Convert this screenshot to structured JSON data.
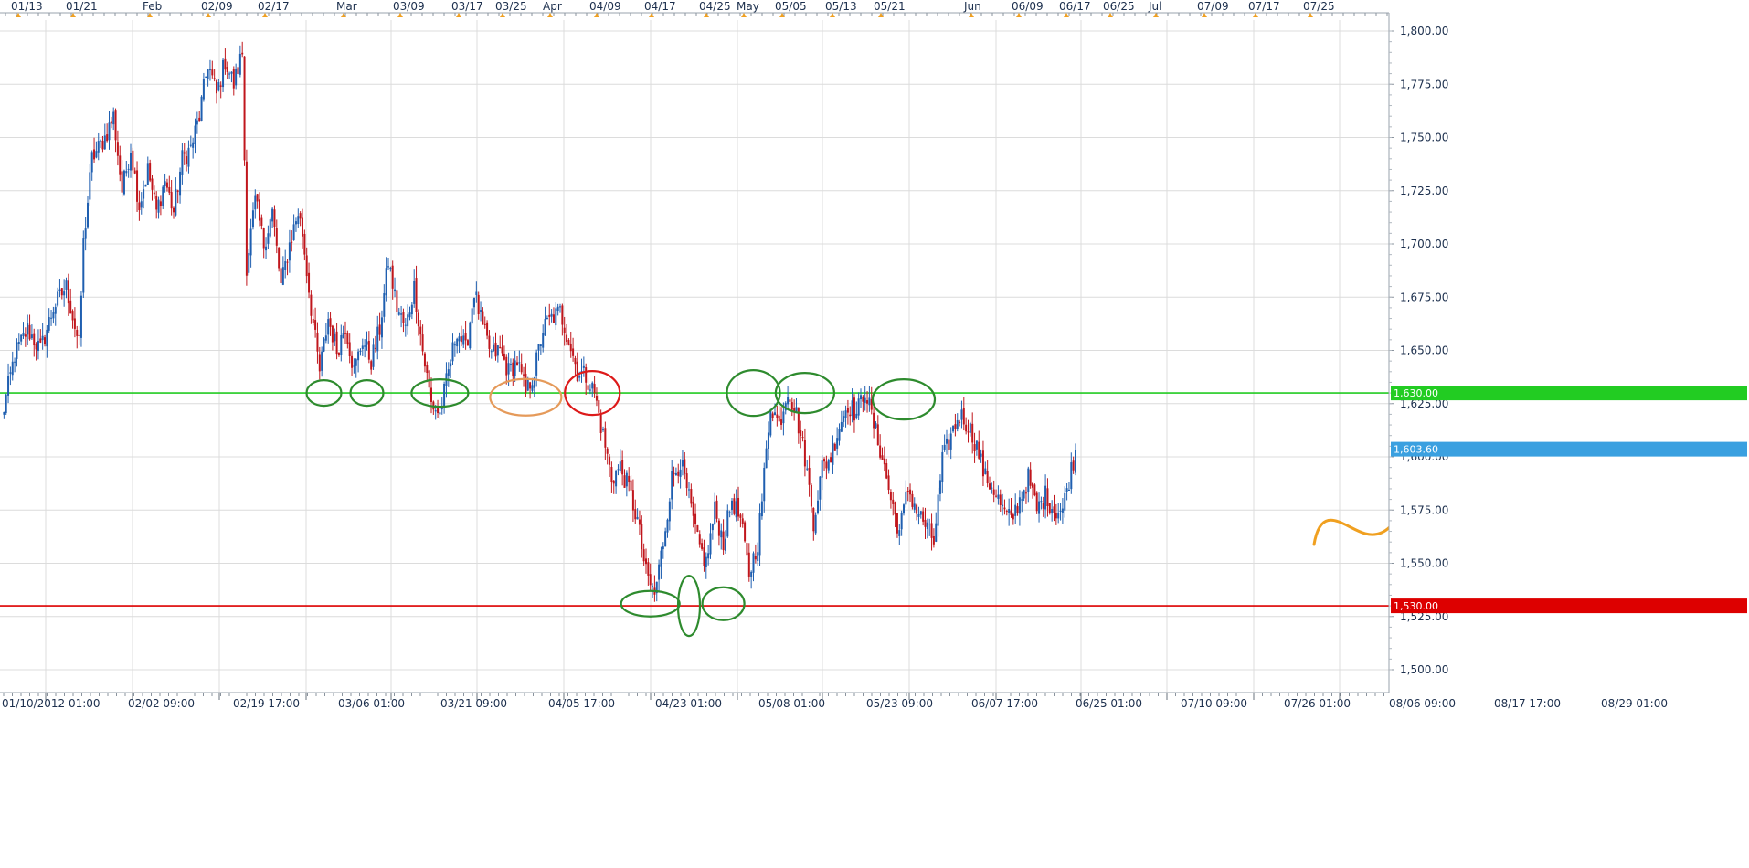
{
  "chart_data": {
    "type": "candlestick",
    "instrument_hint": "price chart (gold-like scale)",
    "ylim": [
      1490,
      1805
    ],
    "grid": true,
    "y_ticks": [
      1800,
      1775,
      1750,
      1725,
      1700,
      1675,
      1650,
      1625,
      1600,
      1575,
      1550,
      1525,
      1500
    ],
    "y_tick_labels": [
      "1,800.00",
      "1,775.00",
      "1,750.00",
      "1,725.00",
      "1,700.00",
      "1,675.00",
      "1,650.00",
      "1,625.00",
      "1,600.00",
      "1,575.00",
      "1,550.00",
      "1,525.00",
      "1,500.00"
    ],
    "top_axis_labels": [
      "01/13",
      "01/21",
      "Feb",
      "02/09",
      "02/17",
      "Mar",
      "03/09",
      "03/17",
      "03/25",
      "Apr",
      "04/09",
      "04/17",
      "04/25",
      "May",
      "05/05",
      "05/13",
      "05/21",
      "Jun",
      "06/09",
      "06/17",
      "06/25",
      "Jul",
      "07/09",
      "07/17",
      "07/25"
    ],
    "bottom_axis_labels": [
      "01/10/2012 01:00",
      "02/02 09:00",
      "02/19 17:00",
      "03/06 01:00",
      "03/21 09:00",
      "04/05 17:00",
      "04/23 01:00",
      "05/08 01:00",
      "05/23 09:00",
      "06/07 17:00",
      "06/25 01:00",
      "07/10 09:00",
      "07/26 01:00",
      "08/06 09:00",
      "08/17 17:00",
      "08/29 01:00"
    ],
    "horizontal_levels": [
      {
        "value": 1630,
        "label": "1,630.00",
        "color": "#22cc22"
      },
      {
        "value": 1530,
        "label": "1,530.00",
        "color": "#dd0000"
      }
    ],
    "current_price": {
      "value": 1603.6,
      "label": "1,603.60",
      "color": "#3aa0e0"
    },
    "bull_color": "#1f5fb0",
    "bear_color": "#c0161c",
    "path": [
      [
        0,
        1618
      ],
      [
        6,
        1648
      ],
      [
        12,
        1660
      ],
      [
        18,
        1650
      ],
      [
        24,
        1670
      ],
      [
        30,
        1680
      ],
      [
        36,
        1652
      ],
      [
        38,
        1700
      ],
      [
        42,
        1740
      ],
      [
        48,
        1750
      ],
      [
        52,
        1760
      ],
      [
        56,
        1725
      ],
      [
        60,
        1745
      ],
      [
        64,
        1718
      ],
      [
        68,
        1735
      ],
      [
        72,
        1715
      ],
      [
        76,
        1730
      ],
      [
        80,
        1715
      ],
      [
        84,
        1740
      ],
      [
        88,
        1745
      ],
      [
        92,
        1760
      ],
      [
        96,
        1785
      ],
      [
        100,
        1770
      ],
      [
        104,
        1786
      ],
      [
        108,
        1775
      ],
      [
        112,
        1790
      ],
      [
        114,
        1690
      ],
      [
        118,
        1720
      ],
      [
        122,
        1700
      ],
      [
        126,
        1715
      ],
      [
        130,
        1680
      ],
      [
        134,
        1700
      ],
      [
        138,
        1715
      ],
      [
        140,
        1705
      ],
      [
        144,
        1670
      ],
      [
        148,
        1640
      ],
      [
        152,
        1665
      ],
      [
        156,
        1650
      ],
      [
        160,
        1662
      ],
      [
        164,
        1640
      ],
      [
        168,
        1655
      ],
      [
        172,
        1645
      ],
      [
        176,
        1660
      ],
      [
        180,
        1692
      ],
      [
        184,
        1670
      ],
      [
        188,
        1660
      ],
      [
        192,
        1680
      ],
      [
        196,
        1650
      ],
      [
        200,
        1625
      ],
      [
        204,
        1620
      ],
      [
        208,
        1640
      ],
      [
        212,
        1660
      ],
      [
        216,
        1650
      ],
      [
        220,
        1678
      ],
      [
        224,
        1660
      ],
      [
        228,
        1648
      ],
      [
        232,
        1650
      ],
      [
        236,
        1640
      ],
      [
        240,
        1645
      ],
      [
        244,
        1630
      ],
      [
        248,
        1640
      ],
      [
        252,
        1660
      ],
      [
        256,
        1665
      ],
      [
        260,
        1668
      ],
      [
        264,
        1655
      ],
      [
        268,
        1640
      ],
      [
        272,
        1638
      ],
      [
        276,
        1630
      ],
      [
        280,
        1610
      ],
      [
        284,
        1590
      ],
      [
        288,
        1595
      ],
      [
        292,
        1585
      ],
      [
        296,
        1570
      ],
      [
        300,
        1545
      ],
      [
        304,
        1535
      ],
      [
        308,
        1560
      ],
      [
        312,
        1590
      ],
      [
        316,
        1598
      ],
      [
        320,
        1580
      ],
      [
        324,
        1560
      ],
      [
        328,
        1550
      ],
      [
        332,
        1575
      ],
      [
        336,
        1560
      ],
      [
        340,
        1580
      ],
      [
        344,
        1570
      ],
      [
        348,
        1545
      ],
      [
        352,
        1560
      ],
      [
        354,
        1580
      ],
      [
        358,
        1625
      ],
      [
        362,
        1615
      ],
      [
        366,
        1632
      ],
      [
        370,
        1620
      ],
      [
        374,
        1600
      ],
      [
        378,
        1570
      ],
      [
        382,
        1595
      ],
      [
        386,
        1600
      ],
      [
        390,
        1615
      ],
      [
        394,
        1625
      ],
      [
        398,
        1620
      ],
      [
        402,
        1632
      ],
      [
        406,
        1615
      ],
      [
        410,
        1600
      ],
      [
        414,
        1580
      ],
      [
        418,
        1565
      ],
      [
        422,
        1585
      ],
      [
        426,
        1575
      ],
      [
        430,
        1568
      ],
      [
        434,
        1560
      ],
      [
        438,
        1598
      ],
      [
        442,
        1610
      ],
      [
        446,
        1620
      ],
      [
        450,
        1615
      ],
      [
        454,
        1605
      ],
      [
        458,
        1590
      ],
      [
        462,
        1585
      ],
      [
        466,
        1575
      ],
      [
        470,
        1570
      ],
      [
        474,
        1580
      ],
      [
        478,
        1590
      ],
      [
        482,
        1575
      ],
      [
        486,
        1582
      ],
      [
        490,
        1575
      ],
      [
        494,
        1575
      ],
      [
        496,
        1585
      ],
      [
        500,
        1603
      ]
    ],
    "annotations": {
      "ellipses": [
        {
          "x_bar": 150,
          "y": 1630,
          "rx": 19,
          "ry": 14,
          "color": "#2e8b2e"
        },
        {
          "x_bar": 170,
          "y": 1630,
          "rx": 18,
          "ry": 14,
          "color": "#2e8b2e"
        },
        {
          "x_bar": 204,
          "y": 1630,
          "rx": 31,
          "ry": 15,
          "color": "#2e8b2e"
        },
        {
          "x_bar": 244,
          "y": 1628,
          "rx": 39,
          "ry": 20,
          "color": "#e59a5a"
        },
        {
          "x_bar": 275,
          "y": 1630,
          "rx": 30,
          "ry": 24,
          "color": "#dd1a1a"
        },
        {
          "x_bar": 302,
          "y": 1531,
          "rx": 32,
          "ry": 14,
          "color": "#2e8b2e"
        },
        {
          "x_bar": 320,
          "y": 1530,
          "rx": 12,
          "ry": 33,
          "color": "#2e8b2e"
        },
        {
          "x_bar": 336,
          "y": 1531,
          "rx": 23,
          "ry": 18,
          "color": "#2e8b2e"
        },
        {
          "x_bar": 350,
          "y": 1630,
          "rx": 29,
          "ry": 25,
          "color": "#2e8b2e"
        },
        {
          "x_bar": 374,
          "y": 1630,
          "rx": 32,
          "ry": 22,
          "color": "#2e8b2e"
        },
        {
          "x_bar": 420,
          "y": 1627,
          "rx": 34,
          "ry": 22,
          "color": "#2e8b2e"
        }
      ],
      "projection_arrow_color": "#f0a020"
    }
  }
}
